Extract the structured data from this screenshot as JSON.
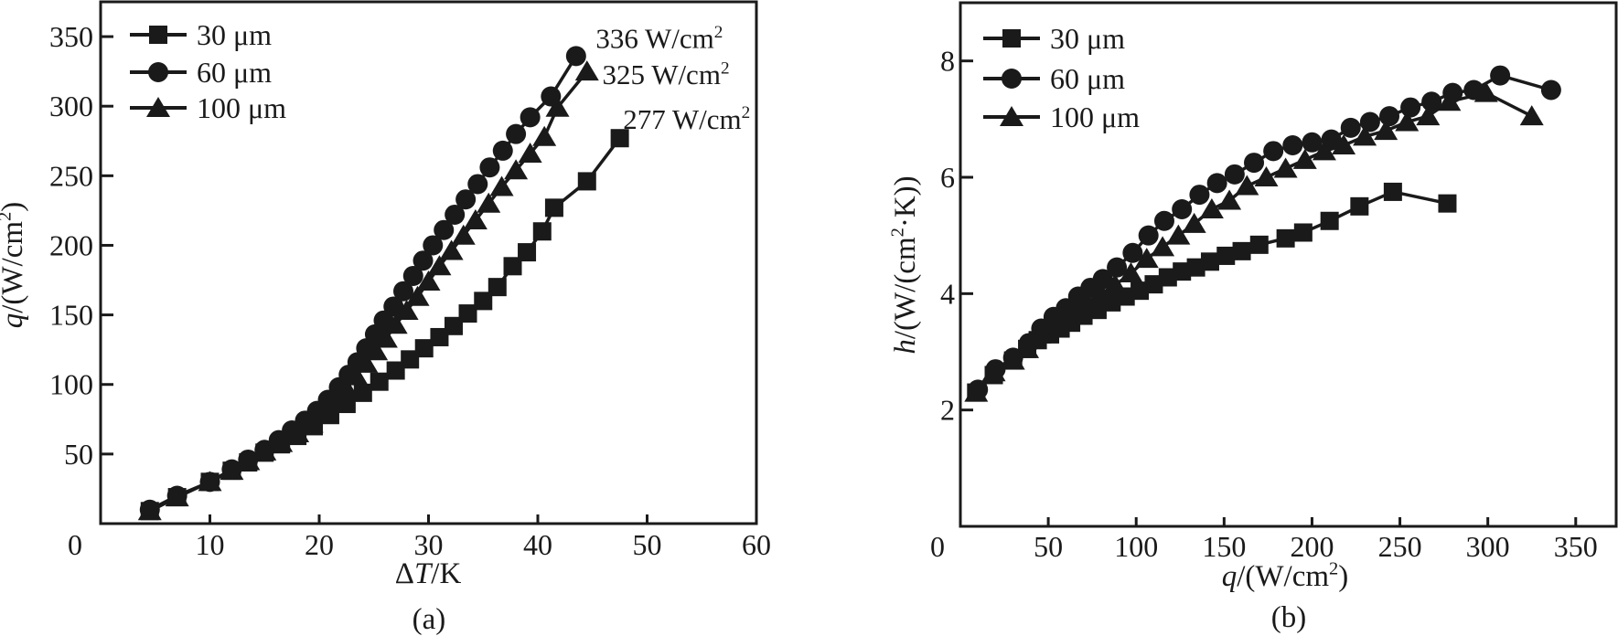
{
  "figure": {
    "background": "#ffffff",
    "ink_color": "#1a1a1a"
  },
  "chart_data": [
    {
      "id": "a",
      "type": "line",
      "sublabel": "(a)",
      "xlabel": "ΔT/K",
      "ylabel": "q/(W/cm2)",
      "xlabel_segments": [
        {
          "text": "Δ"
        },
        {
          "text": "T",
          "italic": true
        },
        {
          "text": "/K"
        }
      ],
      "ylabel_segments": [
        {
          "text": "q",
          "italic": true
        },
        {
          "text": "/(W/cm"
        },
        {
          "text": "2",
          "sup": true
        },
        {
          "text": ")"
        }
      ],
      "xlim": [
        0,
        60
      ],
      "ylim": [
        0,
        375
      ],
      "xticks": [
        0,
        10,
        20,
        30,
        40,
        50,
        60
      ],
      "yticks": [
        50,
        100,
        150,
        200,
        250,
        300,
        350
      ],
      "grid": false,
      "legend_position": "top-left",
      "series": [
        {
          "name": "30 μm",
          "marker": "square",
          "x": [
            4.5,
            7,
            10,
            12,
            13.5,
            15,
            16.5,
            18,
            19.5,
            21,
            22.5,
            24,
            25.5,
            27,
            28.3,
            29.6,
            31,
            32.3,
            33.6,
            35,
            36.3,
            37.7,
            39,
            40.4,
            41.5,
            44.5,
            47.5
          ],
          "y": [
            9,
            19,
            30,
            38,
            44,
            51,
            57,
            63,
            70,
            78,
            86,
            94,
            102,
            110,
            118,
            126,
            134,
            142,
            151,
            160,
            170,
            185,
            195,
            210,
            227,
            246,
            277
          ]
        },
        {
          "name": "60 μm",
          "marker": "circle",
          "x": [
            4.5,
            7,
            10,
            12,
            13.5,
            15,
            16.3,
            17.5,
            18.7,
            19.8,
            20.8,
            21.8,
            22.7,
            23.5,
            24.3,
            25.1,
            25.9,
            26.8,
            27.7,
            28.6,
            29.5,
            30.4,
            31.4,
            32.4,
            33.4,
            34.5,
            35.6,
            36.8,
            38,
            39.3,
            41.2,
            43.5
          ],
          "y": [
            10,
            20,
            30,
            39,
            46,
            53,
            60,
            67,
            74,
            81,
            89,
            98,
            107,
            116,
            126,
            136,
            146,
            156,
            167,
            178,
            189,
            200,
            211,
            222,
            233,
            244,
            256,
            268,
            280,
            292,
            307,
            336
          ]
        },
        {
          "name": "100 μm",
          "marker": "triangle",
          "x": [
            4.5,
            7,
            10,
            12,
            13.5,
            15,
            16.5,
            18,
            19.3,
            20.5,
            21.5,
            22.5,
            23.4,
            24.3,
            25.2,
            26.1,
            27,
            28,
            29,
            30,
            31,
            32.1,
            33.2,
            34.3,
            35.5,
            36.7,
            38,
            39.3,
            40.6,
            41.8,
            44.5
          ],
          "y": [
            9,
            19,
            30,
            38,
            45,
            52,
            58,
            65,
            72,
            80,
            88,
            97,
            106,
            115,
            124,
            133,
            143,
            153,
            163,
            174,
            185,
            196,
            207,
            218,
            230,
            242,
            254,
            266,
            278,
            299,
            325
          ]
        }
      ],
      "annotations": [
        {
          "text": "336 W/cm2",
          "text_segments": [
            {
              "text": "336 W/cm"
            },
            {
              "text": "2",
              "sup": true
            }
          ],
          "x": 45.3,
          "y": 349
        },
        {
          "text": "325 W/cm2",
          "text_segments": [
            {
              "text": "325 W/cm"
            },
            {
              "text": "2",
              "sup": true
            }
          ],
          "x": 45.9,
          "y": 323
        },
        {
          "text": "277 W/cm2",
          "text_segments": [
            {
              "text": "277 W/cm"
            },
            {
              "text": "2",
              "sup": true
            }
          ],
          "x": 47.8,
          "y": 291
        }
      ]
    },
    {
      "id": "b",
      "type": "line",
      "sublabel": "(b)",
      "xlabel": "q/(W/cm2)",
      "ylabel": "h/(W/(cm2·K))",
      "xlabel_segments": [
        {
          "text": "q",
          "italic": true
        },
        {
          "text": "/(W/cm"
        },
        {
          "text": "2",
          "sup": true
        },
        {
          "text": ")"
        }
      ],
      "ylabel_segments": [
        {
          "text": "h",
          "italic": true
        },
        {
          "text": "/(W/(cm"
        },
        {
          "text": "2",
          "sup": true
        },
        {
          "text": "·K))"
        }
      ],
      "xlim": [
        0,
        373
      ],
      "ylim": [
        0,
        9
      ],
      "xticks": [
        0,
        50,
        100,
        150,
        200,
        250,
        300,
        350
      ],
      "yticks": [
        2,
        4,
        6,
        8
      ],
      "grid": false,
      "legend_position": "top-left",
      "series": [
        {
          "name": "30 μm",
          "marker": "square",
          "x": [
            9,
            19,
            30,
            38,
            44,
            51,
            57,
            63,
            70,
            78,
            86,
            94,
            102,
            110,
            118,
            126,
            134,
            142,
            151,
            160,
            170,
            185,
            195,
            210,
            227,
            246,
            277
          ],
          "y": [
            2.3,
            2.6,
            2.85,
            3.05,
            3.2,
            3.3,
            3.4,
            3.5,
            3.62,
            3.72,
            3.85,
            3.95,
            4.05,
            4.16,
            4.28,
            4.38,
            4.45,
            4.55,
            4.65,
            4.73,
            4.84,
            4.95,
            5.05,
            5.25,
            5.5,
            5.75,
            5.55
          ]
        },
        {
          "name": "60 μm",
          "marker": "circle",
          "x": [
            10,
            20,
            30,
            39,
            46,
            53,
            60,
            67,
            74,
            81,
            89,
            98,
            107,
            116,
            126,
            136,
            146,
            156,
            167,
            178,
            189,
            200,
            211,
            222,
            233,
            244,
            256,
            268,
            280,
            292,
            307,
            336
          ],
          "y": [
            2.35,
            2.7,
            2.9,
            3.15,
            3.4,
            3.6,
            3.75,
            3.95,
            4.1,
            4.25,
            4.45,
            4.7,
            5.0,
            5.25,
            5.45,
            5.7,
            5.9,
            6.05,
            6.25,
            6.45,
            6.55,
            6.6,
            6.65,
            6.85,
            6.95,
            7.05,
            7.2,
            7.3,
            7.45,
            7.5,
            7.75,
            7.5
          ]
        },
        {
          "name": "100 μm",
          "marker": "triangle",
          "x": [
            9,
            19,
            30,
            38,
            45,
            52,
            58,
            65,
            72,
            80,
            88,
            97,
            106,
            115,
            124,
            133,
            143,
            153,
            163,
            174,
            185,
            196,
            207,
            218,
            230,
            242,
            254,
            266,
            278,
            299,
            325
          ],
          "y": [
            2.3,
            2.65,
            2.85,
            3.05,
            3.3,
            3.5,
            3.6,
            3.75,
            3.85,
            4.0,
            4.15,
            4.35,
            4.6,
            4.8,
            5.0,
            5.2,
            5.45,
            5.6,
            5.85,
            6.0,
            6.15,
            6.3,
            6.45,
            6.55,
            6.7,
            6.8,
            6.95,
            7.05,
            7.3,
            7.45,
            7.05
          ]
        }
      ],
      "annotations": []
    }
  ]
}
